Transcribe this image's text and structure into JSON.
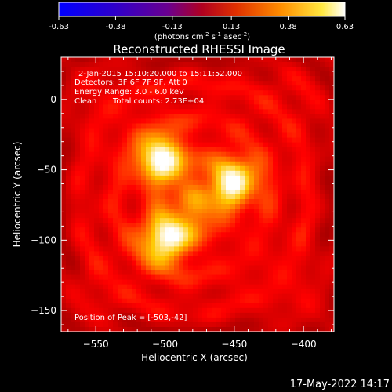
{
  "colorbar": {
    "ticks": [
      "-0.63",
      "-0.38",
      "-0.13",
      "0.13",
      "0.38",
      "0.63"
    ],
    "units_base": "(photons cm",
    "units_exp1": "-2",
    "units_mid": " s",
    "units_exp2": "-1",
    "units_mid2": " asec",
    "units_exp3": "-2",
    "units_end": ")"
  },
  "title": "Reconstructed RHESSI Image",
  "info": {
    "line1": "2-Jan-2015 15:10:20.000 to 15:11:52.000",
    "line2": "Detectors: 3F 6F 7F 9F, Att 0",
    "line3": "Energy Range: 3.0 - 6.0 keV",
    "line4_a": "Clean",
    "line4_b": "Total counts: 2.73E+04",
    "peak": "Position of Peak = [-503,-42]"
  },
  "footer_timestamp": "17-May-2022 14:17",
  "chart_data": {
    "type": "heatmap",
    "title": "Reconstructed RHESSI Image",
    "xlabel": "Heliocentric X (arcsec)",
    "ylabel": "Heliocentric Y (arcsec)",
    "xlim": [
      -575,
      -378
    ],
    "ylim": [
      -165,
      30
    ],
    "x_ticks": [
      -550,
      -500,
      -450,
      -400
    ],
    "y_ticks": [
      0,
      -50,
      -100,
      -150
    ],
    "x_tick_labels": [
      "−550",
      "−500",
      "−450",
      "−400"
    ],
    "y_tick_labels": [
      "0",
      "−50",
      "−100",
      "−150"
    ],
    "colorscale": "hot",
    "value_range": [
      -0.63,
      0.63
    ],
    "peak_position": [
      -503,
      -42
    ],
    "sources": [
      {
        "x": -503,
        "y": -42,
        "relative_intensity": 1.0
      },
      {
        "x": -450,
        "y": -58,
        "relative_intensity": 0.9
      },
      {
        "x": -500,
        "y": -100,
        "relative_intensity": 0.95
      },
      {
        "x": -478,
        "y": -77,
        "relative_intensity": 0.45
      }
    ]
  }
}
